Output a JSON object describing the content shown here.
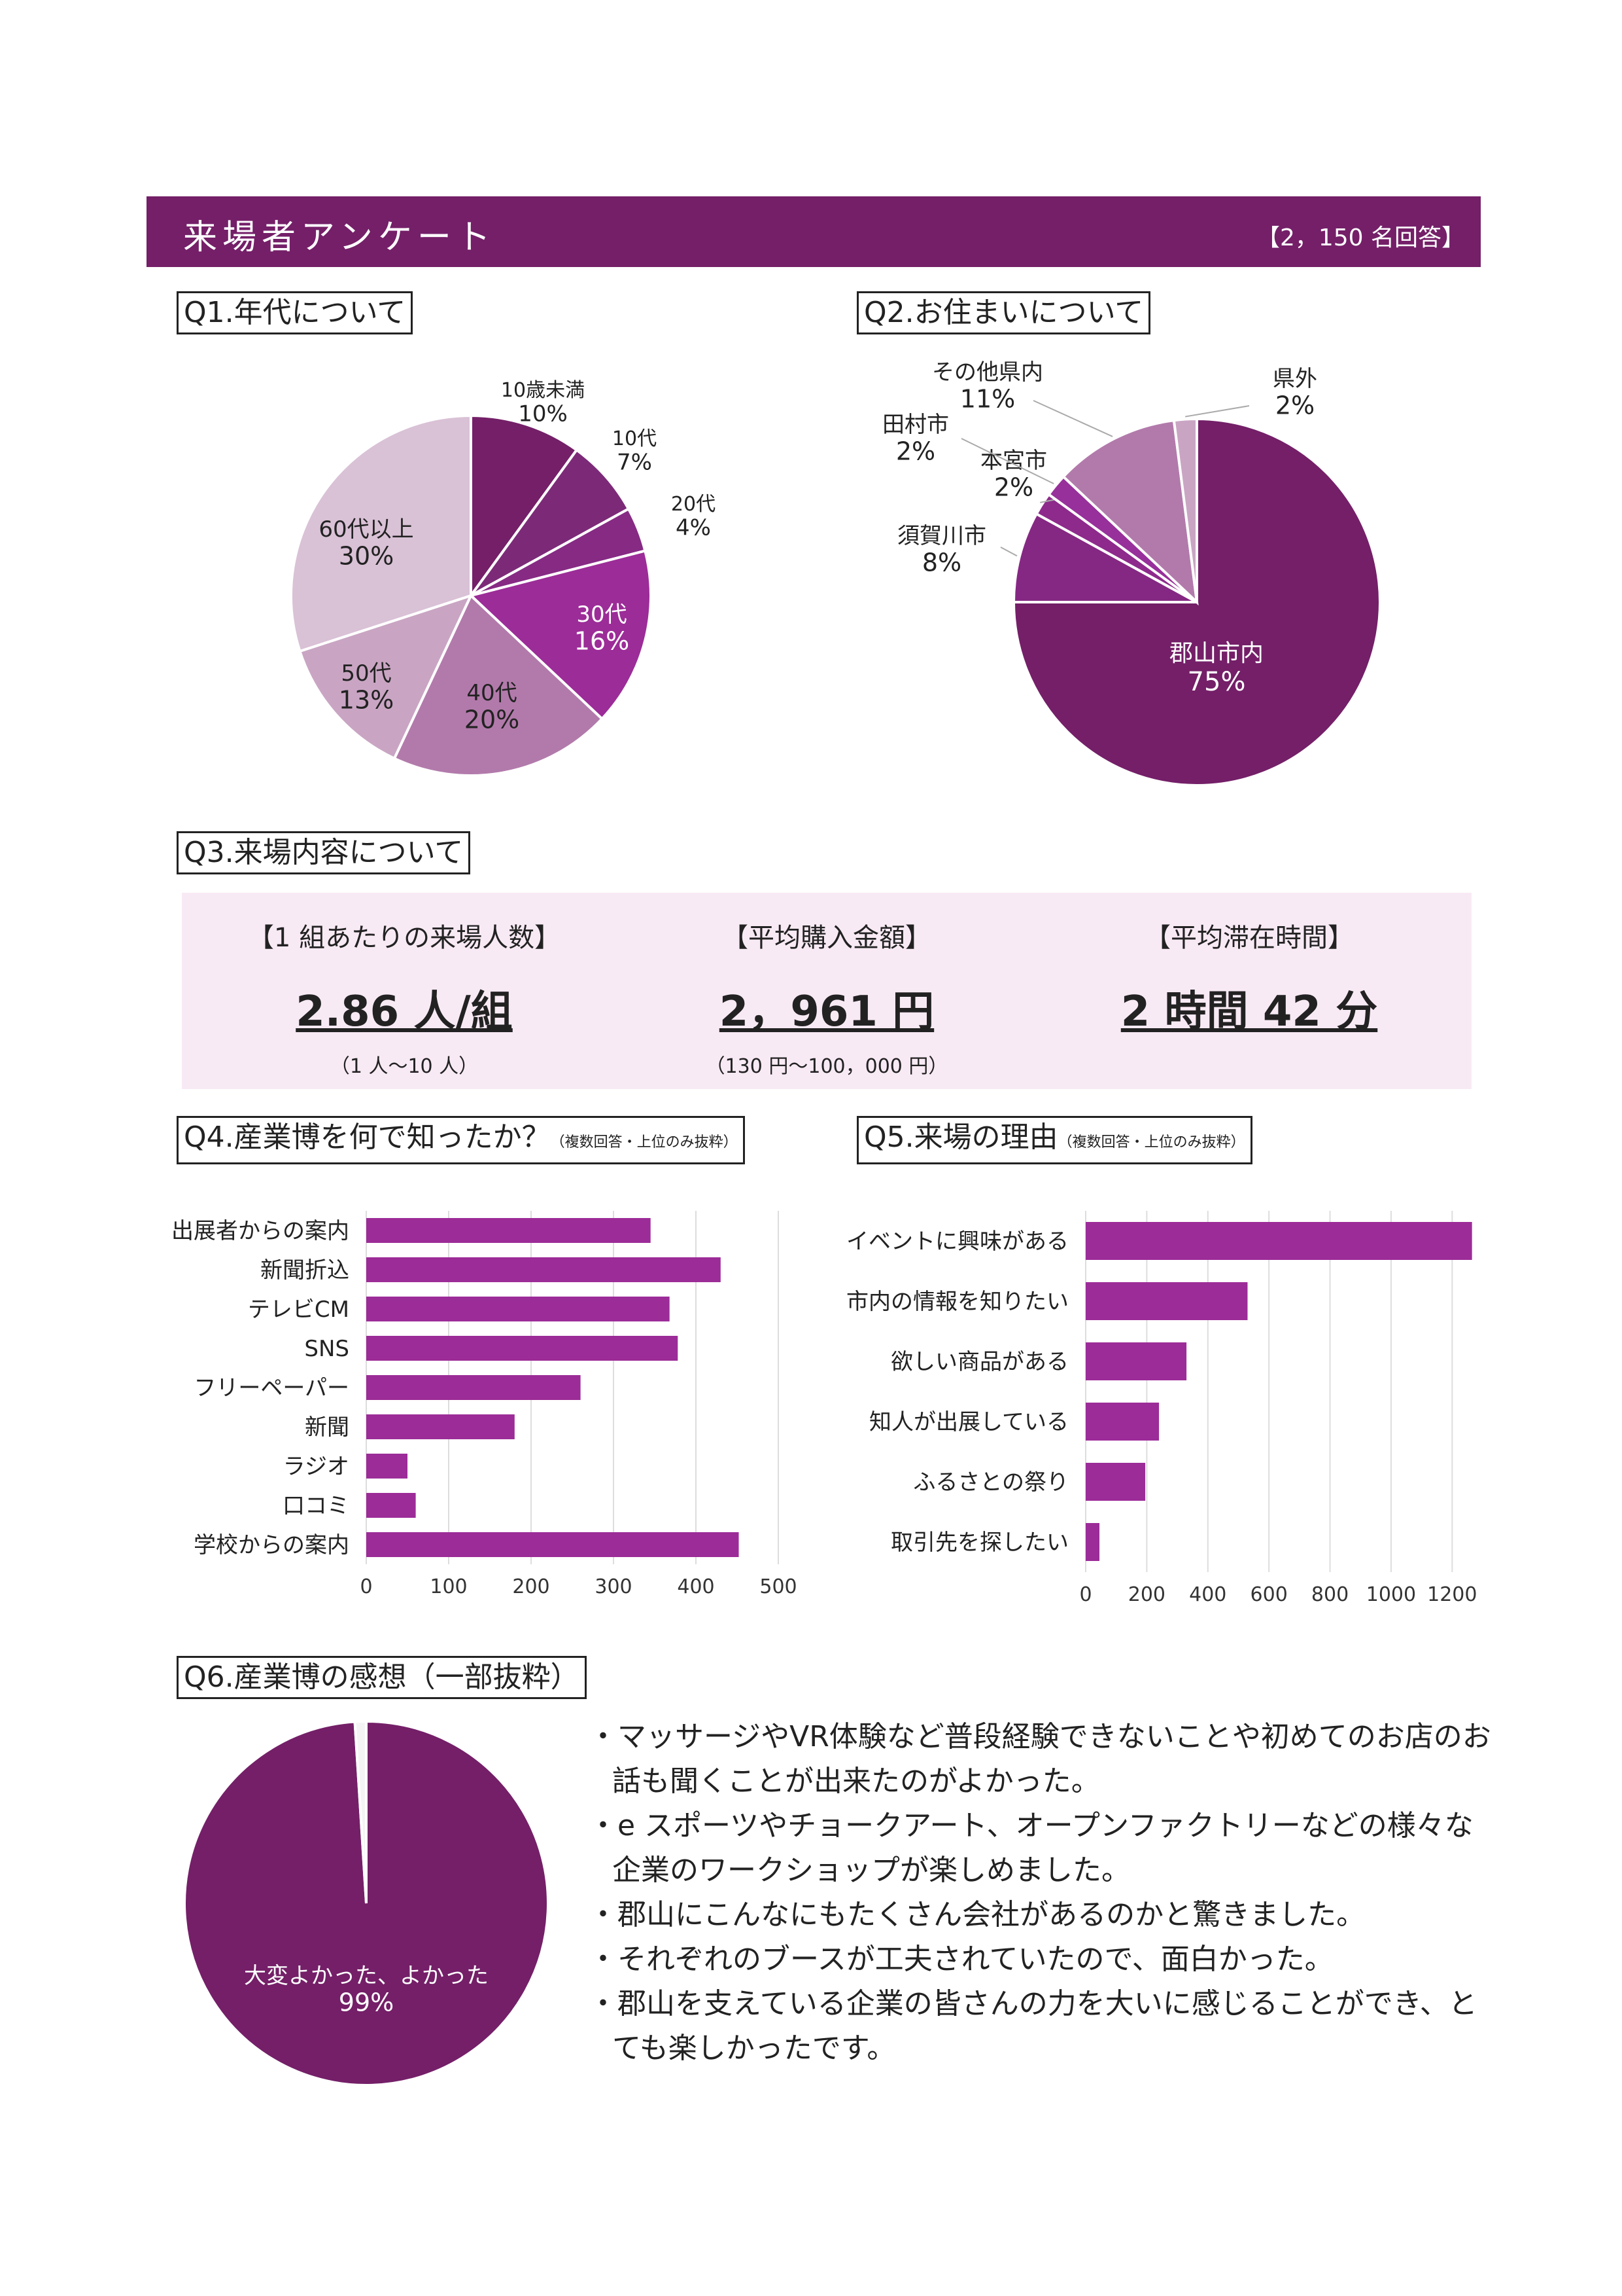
{
  "header": {
    "title": "来場者アンケート",
    "count": "【2，150 名回答】"
  },
  "colors": {
    "brand": "#741f68"
  },
  "q1": {
    "label": "Q1.年代について"
  },
  "q2": {
    "label": "Q2.お住まいについて"
  },
  "q3": {
    "label": "Q3.来場内容について",
    "stats": [
      {
        "label": "【1 組あたりの来場人数】",
        "value": "2.86 人/組",
        "range": "（1 人～10 人）"
      },
      {
        "label": "【平均購入金額】",
        "value": "2，961 円",
        "range": "（130 円～100，000 円）"
      },
      {
        "label": "【平均滞在時間】",
        "value": "2 時間 42 分",
        "range": ""
      }
    ]
  },
  "q4": {
    "label": "Q4.産業博を何で知ったか？",
    "note": "（複数回答・上位のみ抜粋）"
  },
  "q5": {
    "label": "Q5.来場の理由",
    "note": "（複数回答・上位のみ抜粋）"
  },
  "q6": {
    "label": "Q6.産業博の感想（一部抜粋）",
    "comments": [
      "・マッサージやVR体験など普段経験できないことや初めてのお店のお話も聞くことが出来たのがよかった。",
      "・e スポーツやチョークアート、オープンファクトリーなどの様々な企業のワークショップが楽しめました。",
      "・郡山にこんなにもたくさん会社があるのかと驚きました。",
      "・それぞれのブースが工夫されていたので、面白かった。",
      "・郡山を支えている企業の皆さんの力を大いに感じることができ、とても楽しかったです。"
    ]
  },
  "chart_data": [
    {
      "id": "q1",
      "type": "pie",
      "slices": [
        {
          "label": "10歳未満",
          "value": 10,
          "pct": "10%",
          "color": "#741f68"
        },
        {
          "label": "10代",
          "value": 7,
          "pct": "7%",
          "color": "#7c2a78"
        },
        {
          "label": "20代",
          "value": 4,
          "pct": "4%",
          "color": "#862a84"
        },
        {
          "label": "30代",
          "value": 16,
          "pct": "16%",
          "color": "#9c2c98"
        },
        {
          "label": "40代",
          "value": 20,
          "pct": "20%",
          "color": "#b27aab"
        },
        {
          "label": "50代",
          "value": 13,
          "pct": "13%",
          "color": "#c9a5c3"
        },
        {
          "label": "60代以上",
          "value": 30,
          "pct": "30%",
          "color": "#d9c1d6"
        }
      ]
    },
    {
      "id": "q2",
      "type": "pie",
      "slices": [
        {
          "label": "郡山市内",
          "value": 75,
          "pct": "75%",
          "color": "#741f68"
        },
        {
          "label": "須賀川市",
          "value": 8,
          "pct": "8%",
          "color": "#852883"
        },
        {
          "label": "本宮市",
          "value": 2,
          "pct": "2%",
          "color": "#8e2a8c"
        },
        {
          "label": "田村市",
          "value": 2,
          "pct": "2%",
          "color": "#97309a"
        },
        {
          "label": "その他県内",
          "value": 11,
          "pct": "11%",
          "color": "#b27aab"
        },
        {
          "label": "県外",
          "value": 2,
          "pct": "2%",
          "color": "#c9a5c3"
        }
      ]
    },
    {
      "id": "q4",
      "type": "bar",
      "orientation": "horizontal",
      "categories": [
        "出展者からの案内",
        "新聞折込",
        "テレビCM",
        "SNS",
        "フリーペーパー",
        "新聞",
        "ラジオ",
        "口コミ",
        "学校からの案内"
      ],
      "values": [
        345,
        430,
        368,
        378,
        260,
        180,
        50,
        60,
        452
      ],
      "xlim": [
        0,
        500
      ],
      "xticks": [
        0,
        100,
        200,
        300,
        400,
        500
      ],
      "grid": true,
      "color": "#9c2c98"
    },
    {
      "id": "q5",
      "type": "bar",
      "orientation": "horizontal",
      "categories": [
        "イベントに興味がある",
        "市内の情報を知りたい",
        "欲しい商品がある",
        "知人が出展している",
        "ふるさとの祭り",
        "取引先を探したい"
      ],
      "values": [
        1265,
        530,
        330,
        240,
        195,
        45
      ],
      "xlim": [
        0,
        1300
      ],
      "xticks": [
        0,
        200,
        400,
        600,
        800,
        1000,
        1200
      ],
      "grid": true,
      "color": "#9c2c98"
    },
    {
      "id": "q6",
      "type": "pie",
      "slices": [
        {
          "label": "大変よかった、よかった",
          "value": 99,
          "pct": "99%",
          "color": "#741f68"
        },
        {
          "label": "",
          "value": 1,
          "pct": "",
          "color": "#f4f4f4"
        }
      ]
    }
  ]
}
